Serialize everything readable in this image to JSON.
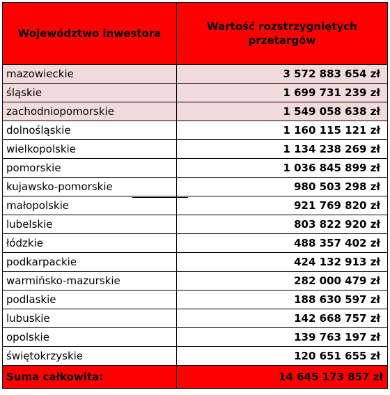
{
  "table": {
    "header": {
      "col1": "Województwo inwestora",
      "col2": "Wartość rozstrzygniętych przetargów"
    },
    "rows": [
      {
        "region": "mazowieckie",
        "value": "3 572 883 654 zł",
        "highlight": true
      },
      {
        "region": "śląskie",
        "value": "1 699 731 239 zł",
        "highlight": true
      },
      {
        "region": "zachodniopomorskie",
        "value": "1 549 058 638 zł",
        "highlight": true
      },
      {
        "region": "dolnośląskie",
        "value": "1 160 115 121 zł",
        "highlight": false
      },
      {
        "region": "wielkopolskie",
        "value": "1 134 238 269 zł",
        "highlight": false
      },
      {
        "region": "pomorskie",
        "value": "1 036 845 899 zł",
        "highlight": false
      },
      {
        "region": "kujawsko-pomorskie",
        "value": "980 503 298 zł",
        "highlight": false
      },
      {
        "region": "małopolskie",
        "value": "921 769 820 zł",
        "highlight": false
      },
      {
        "region": "lubelskie",
        "value": "803 822 920 zł",
        "highlight": false
      },
      {
        "region": "łódzkie",
        "value": "488 357 402 zł",
        "highlight": false
      },
      {
        "region": "podkarpackie",
        "value": "424 132 913 zł",
        "highlight": false
      },
      {
        "region": "warmińsko-mazurskie",
        "value": "282 000 479 zł",
        "highlight": false
      },
      {
        "region": "podlaskie",
        "value": "188 630 597 zł",
        "highlight": false
      },
      {
        "region": "lubuskie",
        "value": "142 668 757 zł",
        "highlight": false
      },
      {
        "region": "opolskie",
        "value": "139 763 197 zł",
        "highlight": false
      },
      {
        "region": "świętokrzyskie",
        "value": "120 651 655 zł",
        "highlight": false
      }
    ],
    "total": {
      "label": "Suma całkowita:",
      "value": "14 645 173 857 zł"
    }
  },
  "colors": {
    "header_bg": "#ff0000",
    "highlight_bg": "#f2dcdb",
    "total_bg": "#ff0000"
  }
}
